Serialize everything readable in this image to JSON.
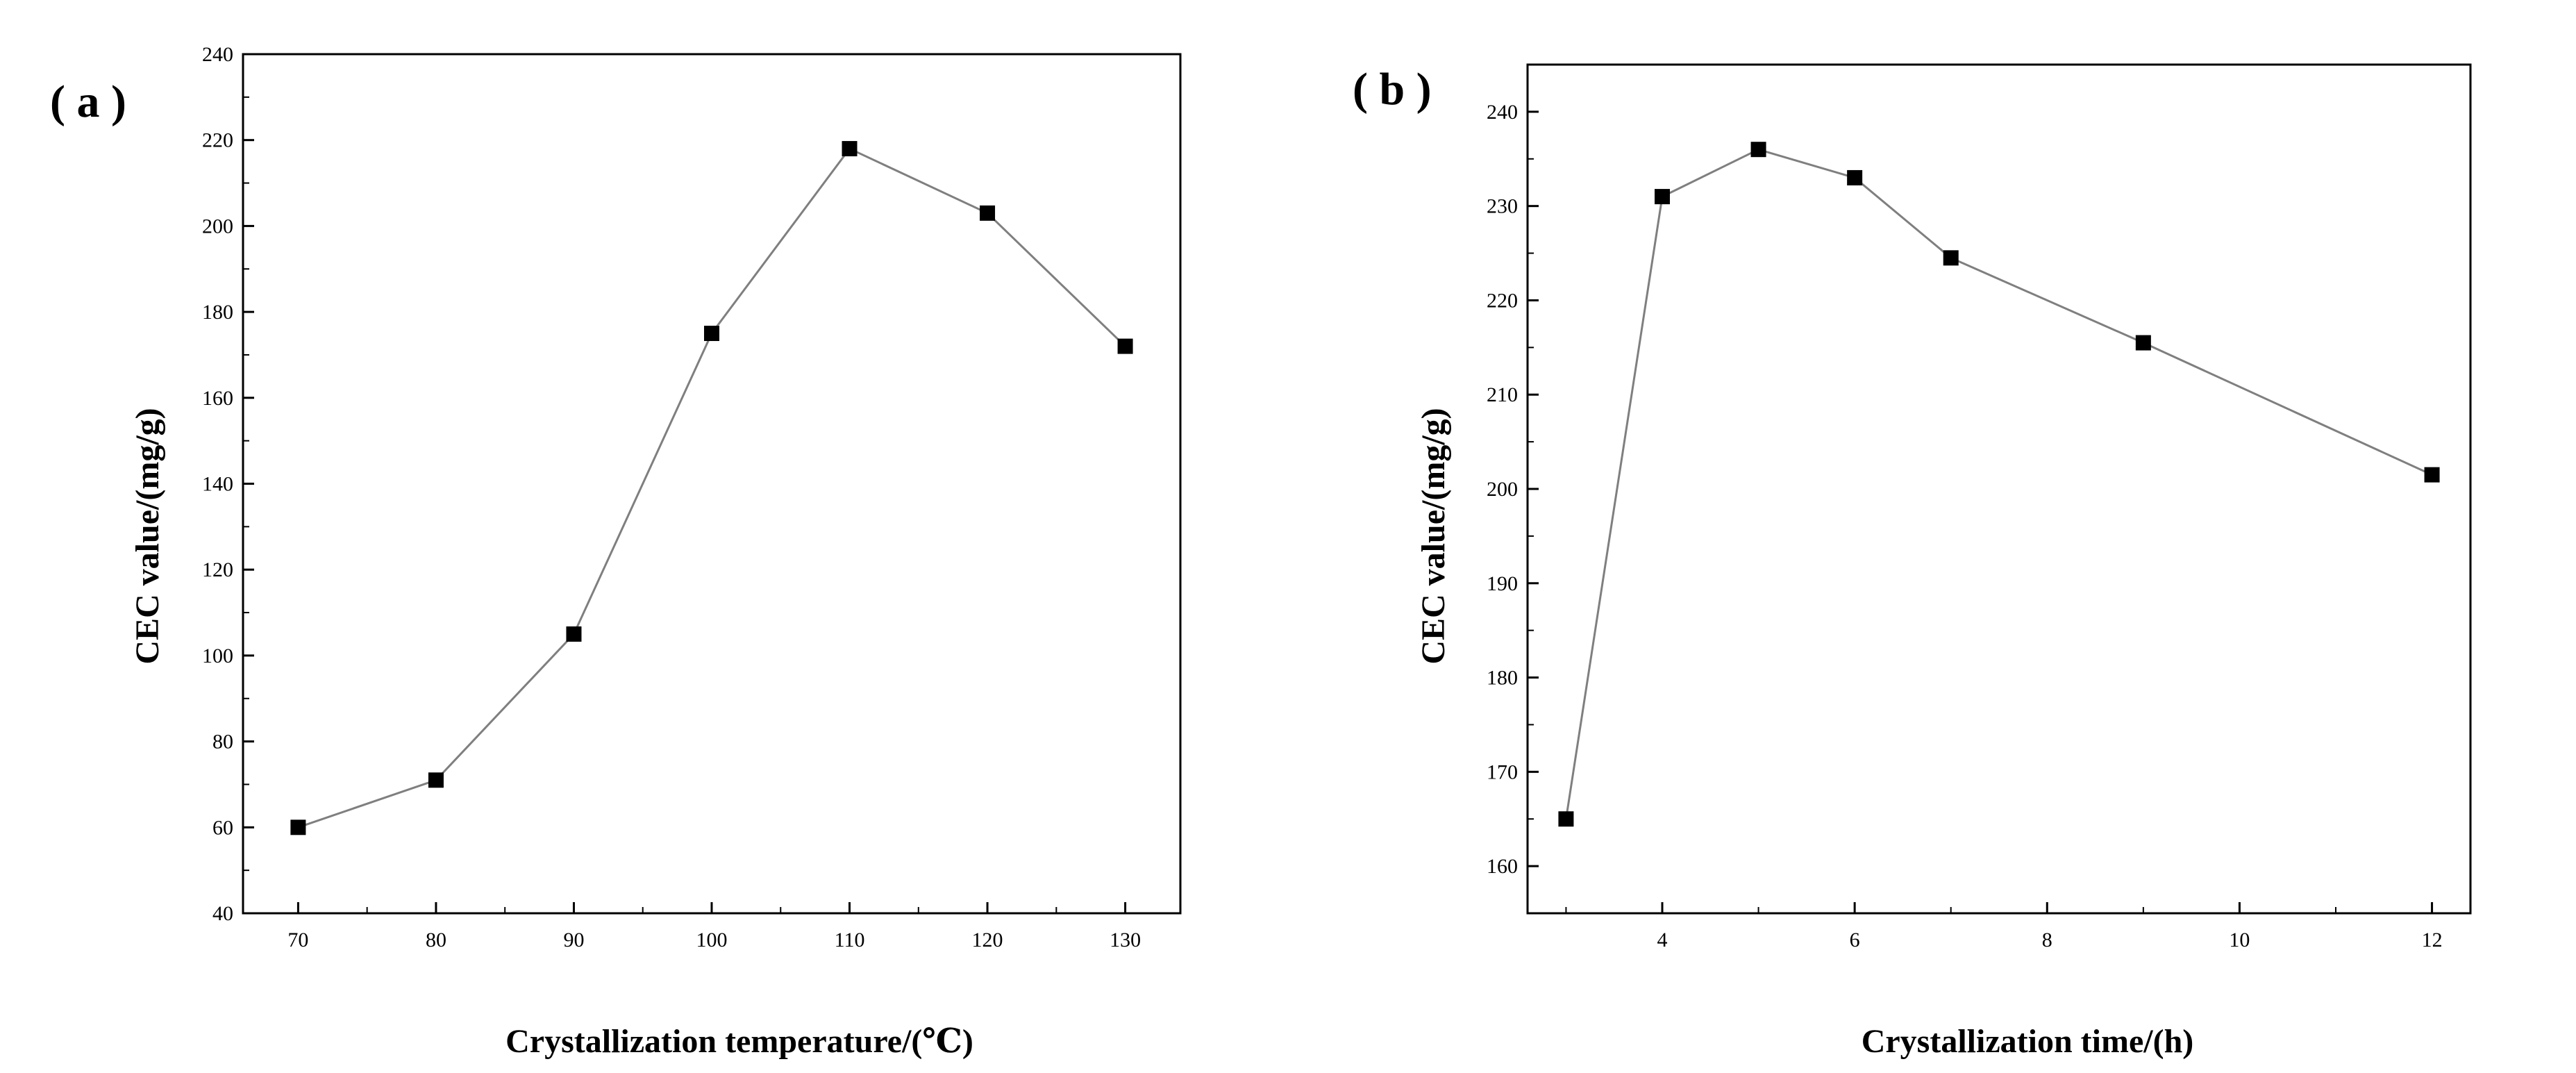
{
  "chart_data": [
    {
      "panel_label": "( a )",
      "type": "line",
      "x": [
        70,
        80,
        90,
        100,
        110,
        120,
        130
      ],
      "series": [
        {
          "name": "CEC value",
          "values": [
            60,
            71,
            105,
            175,
            218,
            203,
            172
          ]
        }
      ],
      "xlabel": "Crystallization temperature/(℃)",
      "ylabel": "CEC value/(mg/g)",
      "xlim": [
        66,
        134
      ],
      "ylim": [
        40,
        240
      ],
      "xticks": [
        70,
        80,
        90,
        100,
        110,
        120,
        130
      ],
      "yticks": [
        40,
        60,
        80,
        100,
        120,
        140,
        160,
        180,
        200,
        220,
        240
      ],
      "marker": "square",
      "grid": false,
      "colors": {
        "line": "#7f7f7f",
        "marker": "#000000",
        "axis": "#000000"
      }
    },
    {
      "panel_label": "( b )",
      "type": "line",
      "x": [
        3,
        4,
        5,
        6,
        7,
        9,
        12
      ],
      "series": [
        {
          "name": "CEC value",
          "values": [
            165,
            231,
            236,
            233,
            224.5,
            215.5,
            201.5
          ]
        }
      ],
      "xlabel": "Crystallization time/(h)",
      "ylabel": "CEC value/(mg/g)",
      "xlim": [
        2.6,
        12.4
      ],
      "ylim": [
        155,
        245
      ],
      "xticks": [
        4,
        6,
        8,
        10,
        12
      ],
      "yticks": [
        160,
        170,
        180,
        190,
        200,
        210,
        220,
        230,
        240
      ],
      "marker": "square",
      "grid": false,
      "colors": {
        "line": "#7f7f7f",
        "marker": "#000000",
        "axis": "#000000"
      }
    }
  ]
}
